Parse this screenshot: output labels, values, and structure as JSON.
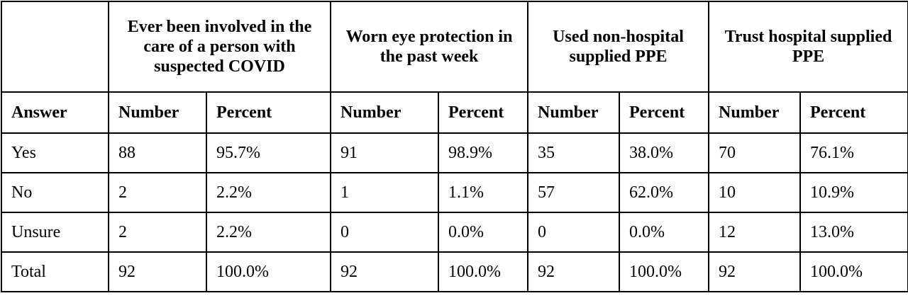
{
  "table": {
    "groups": [
      "Ever been involved in the care of a person with suspected COVID",
      "Worn eye protection in the past week",
      "Used non-hospital supplied PPE",
      "Trust hospital supplied PPE"
    ],
    "columns": [
      "Answer",
      "Number",
      "Percent",
      "Number",
      "Percent",
      "Number",
      "Percent",
      "Number",
      "Percent"
    ],
    "rows": [
      [
        "Yes",
        "88",
        "95.7%",
        "91",
        "98.9%",
        "35",
        "38.0%",
        "70",
        "76.1%"
      ],
      [
        "No",
        "2",
        "2.2%",
        "1",
        "1.1%",
        "57",
        "62.0%",
        "10",
        "10.9%"
      ],
      [
        "Unsure",
        "2",
        "2.2%",
        "0",
        "0.0%",
        "0",
        "0.0%",
        "12",
        "13.0%"
      ],
      [
        "Total",
        "92",
        "100.0%",
        "92",
        "100.0%",
        "92",
        "100.0%",
        "92",
        "100.0%"
      ]
    ]
  }
}
